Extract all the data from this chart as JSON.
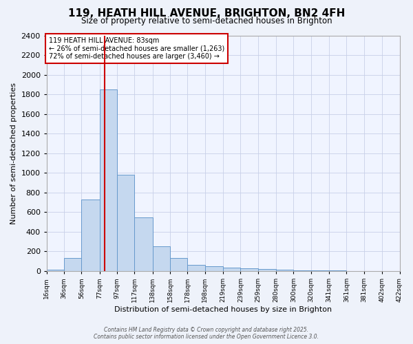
{
  "title": "119, HEATH HILL AVENUE, BRIGHTON, BN2 4FH",
  "subtitle": "Size of property relative to semi-detached houses in Brighton",
  "xlabel": "Distribution of semi-detached houses by size in Brighton",
  "ylabel": "Number of semi-detached properties",
  "bin_edges": [
    16,
    36,
    56,
    77,
    97,
    117,
    138,
    158,
    178,
    198,
    219,
    239,
    259,
    280,
    300,
    320,
    341,
    361,
    381,
    402,
    422
  ],
  "bar_heights": [
    15,
    130,
    730,
    1850,
    980,
    545,
    250,
    130,
    60,
    50,
    35,
    25,
    20,
    15,
    8,
    5,
    5,
    2,
    1,
    0
  ],
  "bar_color": "#c5d8ef",
  "bar_edge_color": "#6699cc",
  "property_size": 83,
  "vline_color": "#cc0000",
  "annotation_title": "119 HEATH HILL AVENUE: 83sqm",
  "annotation_line2": "← 26% of semi-detached houses are smaller (1,263)",
  "annotation_line3": "72% of semi-detached houses are larger (3,460) →",
  "annotation_box_color": "#ffffff",
  "annotation_box_edge": "#cc0000",
  "ylim": [
    0,
    2400
  ],
  "yticks": [
    0,
    200,
    400,
    600,
    800,
    1000,
    1200,
    1400,
    1600,
    1800,
    2000,
    2200,
    2400
  ],
  "tick_labels": [
    "16sqm",
    "36sqm",
    "56sqm",
    "77sqm",
    "97sqm",
    "117sqm",
    "138sqm",
    "158sqm",
    "178sqm",
    "198sqm",
    "219sqm",
    "239sqm",
    "259sqm",
    "280sqm",
    "300sqm",
    "320sqm",
    "341sqm",
    "361sqm",
    "381sqm",
    "402sqm",
    "422sqm"
  ],
  "footer": "Contains HM Land Registry data © Crown copyright and database right 2025.\nContains public sector information licensed under the Open Government Licence 3.0.",
  "bg_color": "#eef2fa",
  "plot_bg_color": "#f0f4ff",
  "grid_color": "#c8d0e8"
}
